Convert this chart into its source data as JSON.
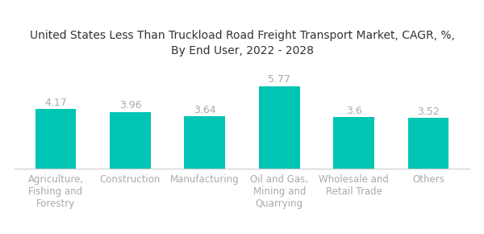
{
  "title": "United States Less Than Truckload Road Freight Transport Market, CAGR, %,\nBy End User, 2022 - 2028",
  "categories": [
    "Agriculture,\nFishing and\nForestry",
    "Construction",
    "Manufacturing",
    "Oil and Gas,\nMining and\nQuarrying",
    "Wholesale and\nRetail Trade",
    "Others"
  ],
  "values": [
    4.17,
    3.96,
    3.64,
    5.77,
    3.6,
    3.52
  ],
  "bar_color": "#00C4B4",
  "label_color": "#aaaaaa",
  "title_color": "#333333",
  "background_color": "#ffffff",
  "ylim": [
    0,
    7.2
  ],
  "title_fontsize": 10.0,
  "value_fontsize": 9.0,
  "tick_fontsize": 8.5
}
